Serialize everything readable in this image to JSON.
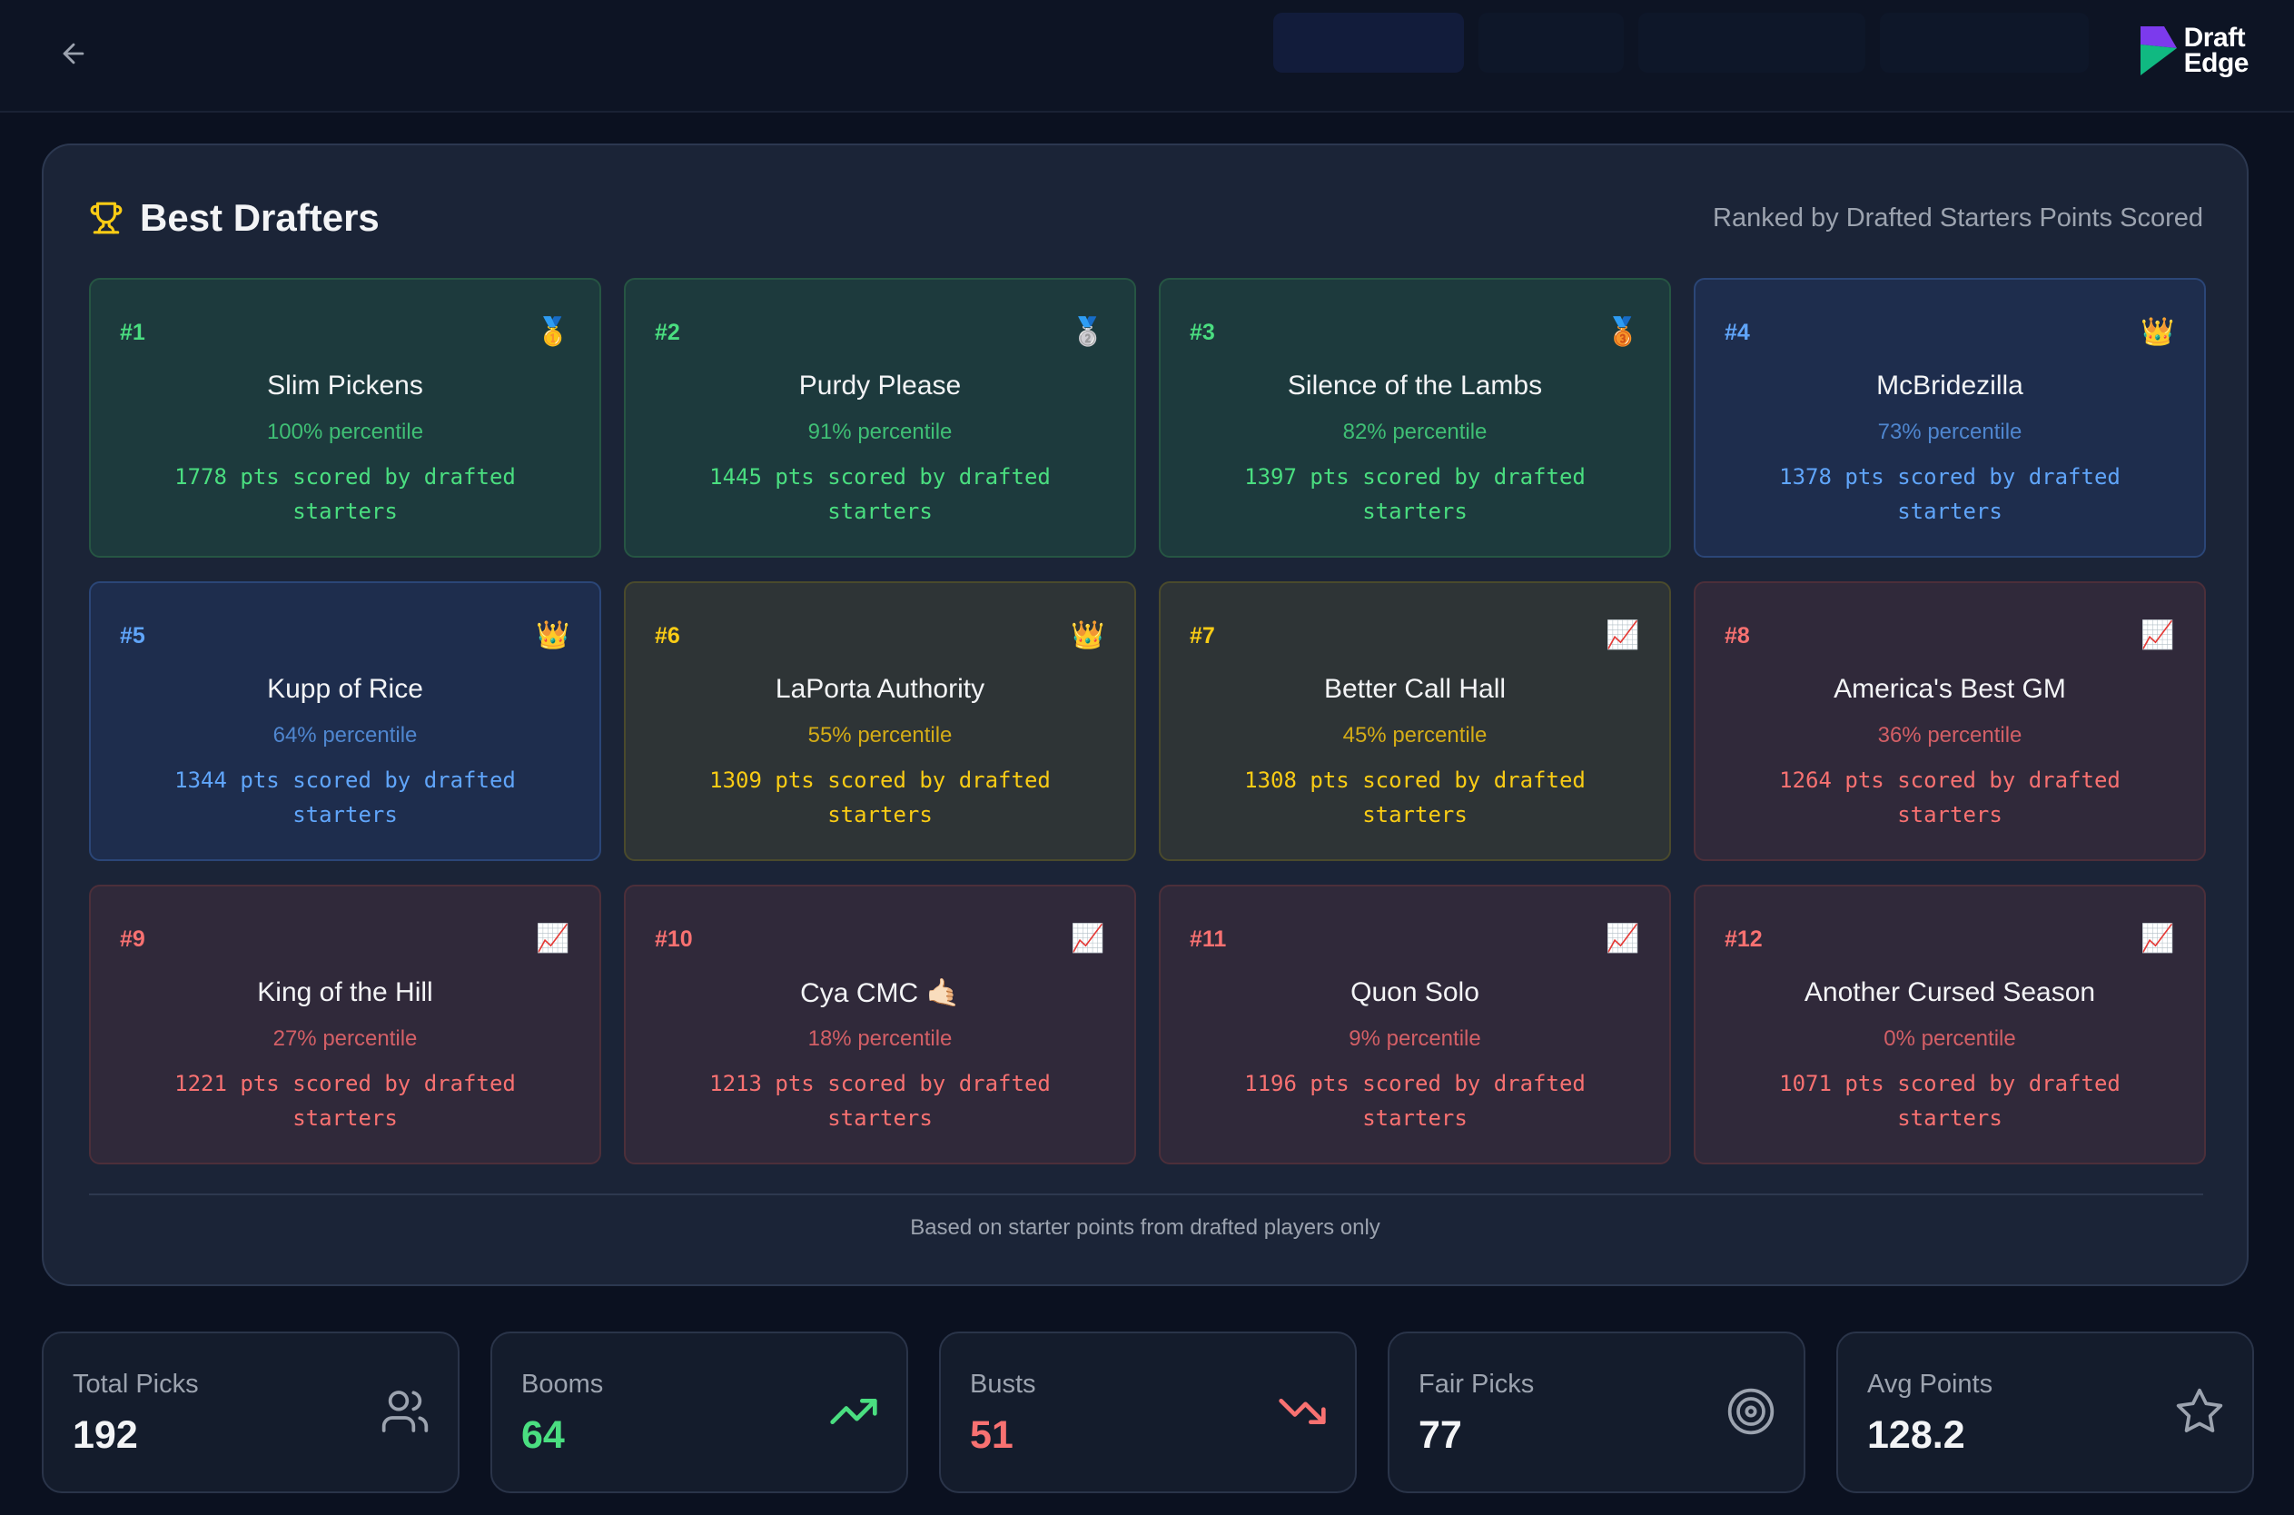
{
  "header": {
    "logo_line1": "Draft",
    "logo_line2": "Edge"
  },
  "panel": {
    "title": "Best Drafters",
    "subtitle": "Ranked by Drafted Starters Points Scored",
    "footnote": "Based on starter points from drafted players only"
  },
  "drafters": [
    {
      "rank": "#1",
      "name": "Slim Pickens",
      "percentile": "100% percentile",
      "points": "1778 pts scored by drafted starters",
      "tier": "green",
      "icon": "gold-medal-icon",
      "glyph": "🥇"
    },
    {
      "rank": "#2",
      "name": "Purdy Please",
      "percentile": "91% percentile",
      "points": "1445 pts scored by drafted starters",
      "tier": "green",
      "icon": "silver-medal-icon",
      "glyph": "🥈"
    },
    {
      "rank": "#3",
      "name": "Silence of the Lambs",
      "percentile": "82% percentile",
      "points": "1397 pts scored by drafted starters",
      "tier": "green",
      "icon": "bronze-medal-icon",
      "glyph": "🥉"
    },
    {
      "rank": "#4",
      "name": "McBridezilla",
      "percentile": "73% percentile",
      "points": "1378 pts scored by drafted starters",
      "tier": "blue",
      "icon": "crown-icon",
      "glyph": "👑"
    },
    {
      "rank": "#5",
      "name": "Kupp of Rice",
      "percentile": "64% percentile",
      "points": "1344 pts scored by drafted starters",
      "tier": "blue",
      "icon": "crown-icon",
      "glyph": "👑"
    },
    {
      "rank": "#6",
      "name": "LaPorta Authority",
      "percentile": "55% percentile",
      "points": "1309 pts scored by drafted starters",
      "tier": "yellow",
      "icon": "crown-icon",
      "glyph": "👑"
    },
    {
      "rank": "#7",
      "name": "Better Call Hall",
      "percentile": "45% percentile",
      "points": "1308 pts scored by drafted starters",
      "tier": "yellow",
      "icon": "chart-increasing-icon",
      "glyph": "📈"
    },
    {
      "rank": "#8",
      "name": "America's Best GM",
      "percentile": "36% percentile",
      "points": "1264 pts scored by drafted starters",
      "tier": "red",
      "icon": "chart-increasing-icon",
      "glyph": "📈"
    },
    {
      "rank": "#9",
      "name": "King of the Hill",
      "percentile": "27% percentile",
      "points": "1221 pts scored by drafted starters",
      "tier": "red",
      "icon": "chart-increasing-icon",
      "glyph": "📈"
    },
    {
      "rank": "#10",
      "name": "Cya CMC 🤙🏻",
      "percentile": "18% percentile",
      "points": "1213 pts scored by drafted starters",
      "tier": "red",
      "icon": "chart-increasing-icon",
      "glyph": "📈"
    },
    {
      "rank": "#11",
      "name": "Quon Solo",
      "percentile": "9% percentile",
      "points": "1196 pts scored by drafted starters",
      "tier": "red",
      "icon": "chart-increasing-icon",
      "glyph": "📈"
    },
    {
      "rank": "#12",
      "name": "Another Cursed Season",
      "percentile": "0% percentile",
      "points": "1071 pts scored by drafted starters",
      "tier": "red",
      "icon": "chart-increasing-icon",
      "glyph": "📈"
    }
  ],
  "stats": [
    {
      "label": "Total Picks",
      "value": "192",
      "icon": "users-icon",
      "tone": "neutral"
    },
    {
      "label": "Booms",
      "value": "64",
      "icon": "trending-up-icon",
      "tone": "green"
    },
    {
      "label": "Busts",
      "value": "51",
      "icon": "trending-down-icon",
      "tone": "red"
    },
    {
      "label": "Fair Picks",
      "value": "77",
      "icon": "target-icon",
      "tone": "neutral"
    },
    {
      "label": "Avg Points",
      "value": "128.2",
      "icon": "star-icon",
      "tone": "neutral"
    }
  ],
  "colors": {
    "background": "#0b1120",
    "panel": "#1b2437",
    "green": "#4ade80",
    "blue": "#60a5fa",
    "yellow": "#facc15",
    "red": "#f87171",
    "trophy": "#facc15"
  }
}
